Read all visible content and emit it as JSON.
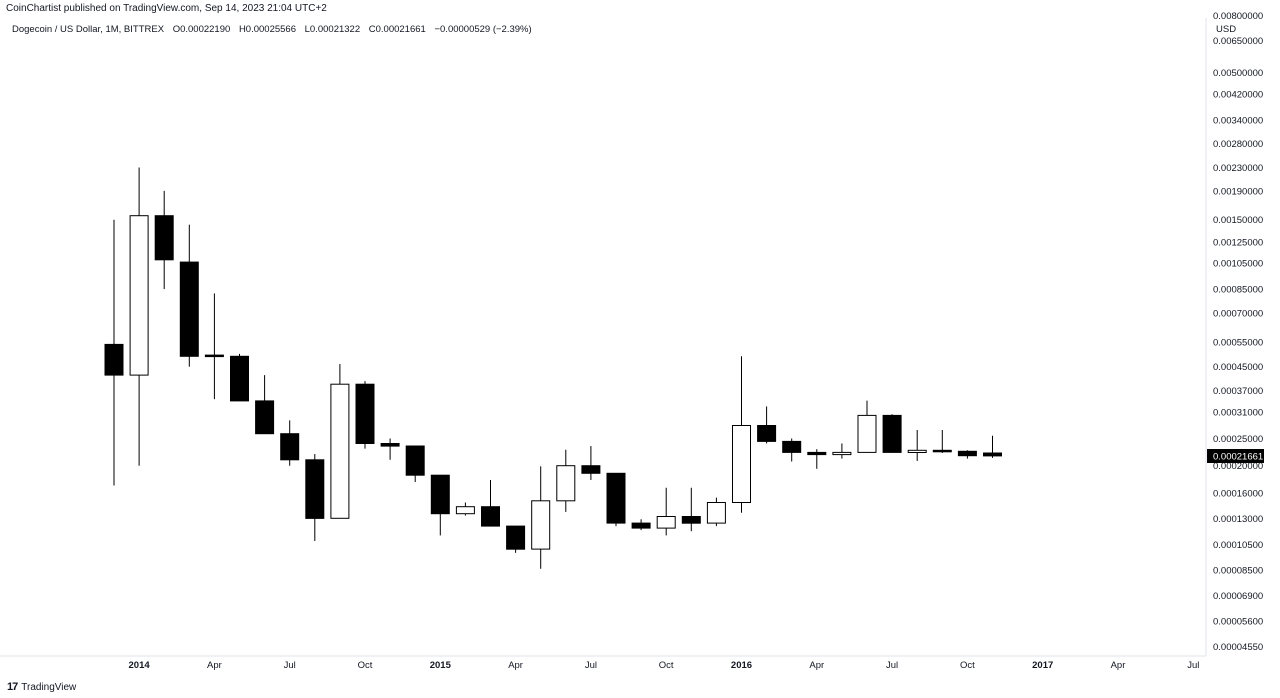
{
  "publisher_line": "CoinChartist published on TradingView.com, Sep 14, 2023 21:04 UTC+2",
  "legend": {
    "symbol": "Dogecoin / US Dollar, 1M, BITTREX",
    "open": "O0.00022190",
    "high": "H0.00025566",
    "low": "L0.00021322",
    "close": "C0.00021661",
    "change": "−0.00000529 (−2.39%)"
  },
  "price_axis_unit": "USD",
  "footer": {
    "logo": "17",
    "brand": "TradingView"
  },
  "colors": {
    "up_fill": "#ffffff",
    "down_fill": "#000000",
    "wick": "#000000",
    "last_price_bg": "#000000",
    "last_price_text": "#ffffff"
  },
  "chart_data": {
    "type": "candlestick",
    "interval": "1M",
    "y_scale": "log",
    "ylim": [
      4e-05,
      0.0085
    ],
    "y_ticks": [
      "0.00800000",
      "0.00650000",
      "0.00500000",
      "0.00420000",
      "0.00340000",
      "0.00280000",
      "0.00230000",
      "0.00190000",
      "0.00150000",
      "0.00125000",
      "0.00105000",
      "0.00085000",
      "0.00070000",
      "0.00055000",
      "0.00045000",
      "0.00037000",
      "0.00031000",
      "0.00025000",
      "0.00020000",
      "0.00016000",
      "0.00013000",
      "0.00010500",
      "0.00008500",
      "0.00006900",
      "0.00005600",
      "0.00004550"
    ],
    "x_ticks": [
      {
        "label": "2014",
        "bold": true
      },
      {
        "label": "Apr",
        "bold": false
      },
      {
        "label": "Jul",
        "bold": false
      },
      {
        "label": "Oct",
        "bold": false
      },
      {
        "label": "2015",
        "bold": true
      },
      {
        "label": "Apr",
        "bold": false
      },
      {
        "label": "Jul",
        "bold": false
      },
      {
        "label": "Oct",
        "bold": false
      },
      {
        "label": "2016",
        "bold": true
      },
      {
        "label": "Apr",
        "bold": false
      },
      {
        "label": "Jul",
        "bold": false
      },
      {
        "label": "Oct",
        "bold": false
      },
      {
        "label": "2017",
        "bold": true
      },
      {
        "label": "Apr",
        "bold": false
      },
      {
        "label": "Jul",
        "bold": false
      }
    ],
    "last_price_label": "0.00021661",
    "candles": [
      {
        "date": "2013-12",
        "o": 0.00054,
        "h": 0.0015,
        "l": 0.00017,
        "c": 0.00042
      },
      {
        "date": "2014-01",
        "o": 0.00042,
        "h": 0.0023,
        "l": 0.0002,
        "c": 0.00155
      },
      {
        "date": "2014-02",
        "o": 0.00155,
        "h": 0.0019,
        "l": 0.00085,
        "c": 0.00108
      },
      {
        "date": "2014-03",
        "o": 0.00106,
        "h": 0.00144,
        "l": 0.00045,
        "c": 0.00049
      },
      {
        "date": "2014-04",
        "o": 0.000495,
        "h": 0.00082,
        "l": 0.000345,
        "c": 0.00049
      },
      {
        "date": "2014-05",
        "o": 0.00049,
        "h": 0.0005,
        "l": 0.000345,
        "c": 0.00034
      },
      {
        "date": "2014-06",
        "o": 0.00034,
        "h": 0.00042,
        "l": 0.00026,
        "c": 0.00026
      },
      {
        "date": "2014-07",
        "o": 0.00026,
        "h": 0.00029,
        "l": 0.0002,
        "c": 0.00021
      },
      {
        "date": "2014-08",
        "o": 0.00021,
        "h": 0.00022,
        "l": 0.000108,
        "c": 0.00013
      },
      {
        "date": "2014-09",
        "o": 0.00013,
        "h": 0.00046,
        "l": 0.00013,
        "c": 0.00039
      },
      {
        "date": "2014-10",
        "o": 0.00039,
        "h": 0.0004,
        "l": 0.00023,
        "c": 0.00024
      },
      {
        "date": "2014-11",
        "o": 0.00024,
        "h": 0.00025,
        "l": 0.00021,
        "c": 0.000235
      },
      {
        "date": "2014-12",
        "o": 0.000235,
        "h": 0.000235,
        "l": 0.000175,
        "c": 0.000185
      },
      {
        "date": "2015-01",
        "o": 0.000185,
        "h": 0.000185,
        "l": 0.000113,
        "c": 0.000135
      },
      {
        "date": "2015-02",
        "o": 0.000135,
        "h": 0.000148,
        "l": 0.000133,
        "c": 0.000143
      },
      {
        "date": "2015-03",
        "o": 0.000143,
        "h": 0.000178,
        "l": 0.000122,
        "c": 0.000122
      },
      {
        "date": "2015-04",
        "o": 0.000122,
        "h": 0.000122,
        "l": 9.8e-05,
        "c": 0.000101
      },
      {
        "date": "2015-05",
        "o": 0.000101,
        "h": 0.000199,
        "l": 8.6e-05,
        "c": 0.00015
      },
      {
        "date": "2015-06",
        "o": 0.00015,
        "h": 0.000228,
        "l": 0.000137,
        "c": 0.0002
      },
      {
        "date": "2015-07",
        "o": 0.0002,
        "h": 0.000235,
        "l": 0.000178,
        "c": 0.000188
      },
      {
        "date": "2015-08",
        "o": 0.000188,
        "h": 0.000188,
        "l": 0.000122,
        "c": 0.000125
      },
      {
        "date": "2015-09",
        "o": 0.000125,
        "h": 0.000129,
        "l": 0.000118,
        "c": 0.00012
      },
      {
        "date": "2015-10",
        "o": 0.00012,
        "h": 0.000167,
        "l": 0.000113,
        "c": 0.000132
      },
      {
        "date": "2015-11",
        "o": 0.000132,
        "h": 0.000167,
        "l": 0.000117,
        "c": 0.000125
      },
      {
        "date": "2015-12",
        "o": 0.000125,
        "h": 0.000154,
        "l": 0.000122,
        "c": 0.000148
      },
      {
        "date": "2016-01",
        "o": 0.000148,
        "h": 0.00049,
        "l": 0.000136,
        "c": 0.000278
      },
      {
        "date": "2016-02",
        "o": 0.000278,
        "h": 0.000325,
        "l": 0.00024,
        "c": 0.000244
      },
      {
        "date": "2016-03",
        "o": 0.000244,
        "h": 0.00025,
        "l": 0.000207,
        "c": 0.000223
      },
      {
        "date": "2016-04",
        "o": 0.000223,
        "h": 0.000229,
        "l": 0.000195,
        "c": 0.000219
      },
      {
        "date": "2016-05",
        "o": 0.000219,
        "h": 0.00024,
        "l": 0.000212,
        "c": 0.000223
      },
      {
        "date": "2016-06",
        "o": 0.000223,
        "h": 0.000341,
        "l": 0.000223,
        "c": 0.000302
      },
      {
        "date": "2016-07",
        "o": 0.000302,
        "h": 0.000305,
        "l": 0.000223,
        "c": 0.000223
      },
      {
        "date": "2016-08",
        "o": 0.000223,
        "h": 0.000268,
        "l": 0.000208,
        "c": 0.000227
      },
      {
        "date": "2016-09",
        "o": 0.000227,
        "h": 0.000268,
        "l": 0.000222,
        "c": 0.000225
      },
      {
        "date": "2016-10",
        "o": 0.000225,
        "h": 0.000227,
        "l": 0.000212,
        "c": 0.000217
      },
      {
        "date": "2016-11",
        "o": 0.0002219,
        "h": 0.00025566,
        "l": 0.00021322,
        "c": 0.00021661
      }
    ]
  }
}
